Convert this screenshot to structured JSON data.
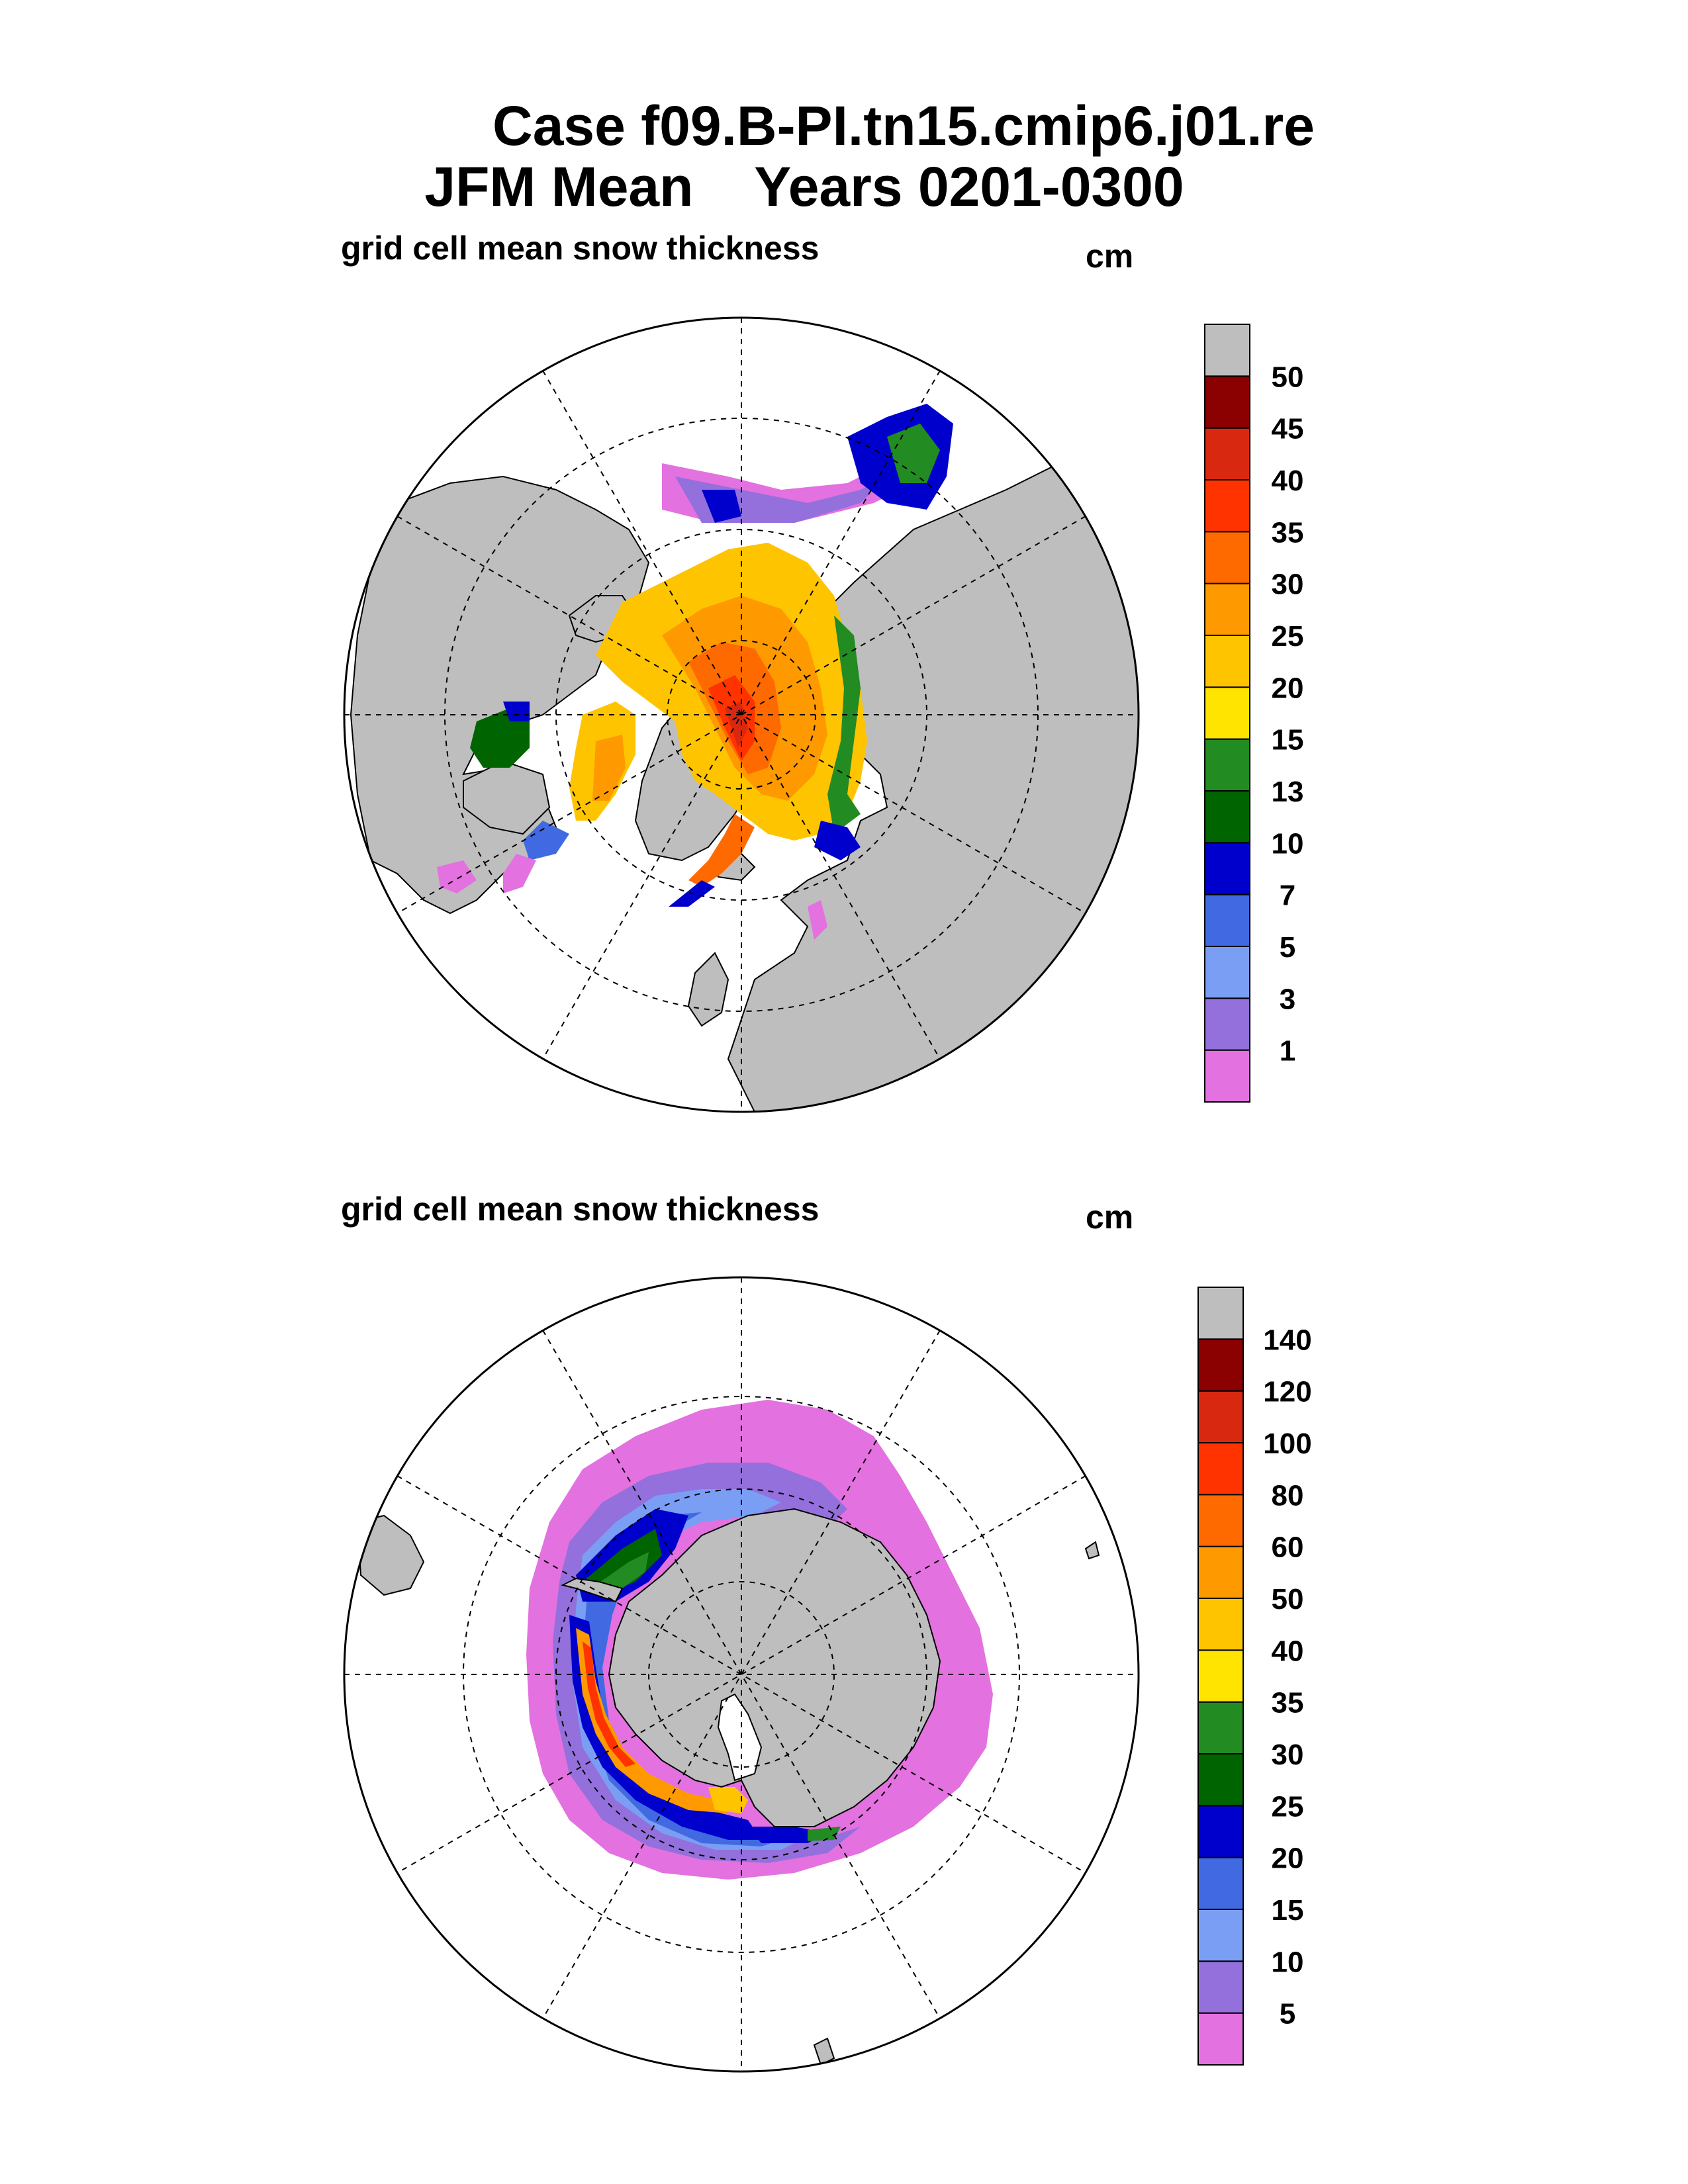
{
  "title_line1": "Case f09.B-PI.tn15.cmip6.j01.re",
  "title_line2": "JFM Mean    Years 0201-0300",
  "panels": [
    {
      "id": "north",
      "subtitle": "grid cell mean snow thickness",
      "units": "cm",
      "colorbar_levels": [
        "1",
        "3",
        "5",
        "7",
        "10",
        "13",
        "15",
        "20",
        "25",
        "30",
        "35",
        "40",
        "45",
        "50"
      ],
      "colorbar_colors": [
        "#e371e0",
        "#9370db",
        "#7b9ef5",
        "#4169e1",
        "#0000cd",
        "#006400",
        "#228b22",
        "#ffe400",
        "#ffc400",
        "#ff9900",
        "#ff6a00",
        "#ff3300",
        "#d92810",
        "#8b0000",
        "#bebebe"
      ]
    },
    {
      "id": "south",
      "subtitle": "grid cell mean snow thickness",
      "units": "cm",
      "colorbar_levels": [
        "5",
        "10",
        "15",
        "20",
        "25",
        "30",
        "35",
        "40",
        "50",
        "60",
        "80",
        "100",
        "120",
        "140"
      ],
      "colorbar_colors": [
        "#e371e0",
        "#9370db",
        "#7b9ef5",
        "#4169e1",
        "#0000cd",
        "#006400",
        "#228b22",
        "#ffe400",
        "#ffc400",
        "#ff9900",
        "#ff6a00",
        "#ff3300",
        "#d92810",
        "#8b0000",
        "#bebebe"
      ]
    }
  ],
  "colors": {
    "land": "#bebebe",
    "ocean": "#ffffff",
    "outline": "#000000"
  }
}
